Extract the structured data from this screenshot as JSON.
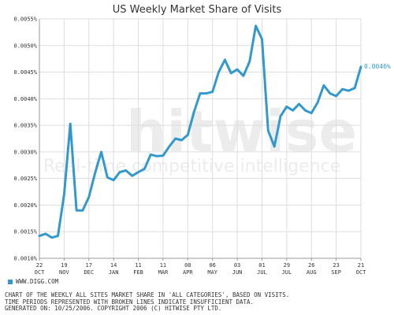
{
  "chart_data": {
    "type": "line",
    "title": "US Weekly Market Share of Visits",
    "ylim": [
      0.001,
      0.0055
    ],
    "yticks": [
      "0.0055%",
      "0.0050%",
      "0.0045%",
      "0.0040%",
      "0.0035%",
      "0.0030%",
      "0.0025%",
      "0.0020%",
      "0.0015%",
      "0.0010%"
    ],
    "yticks_values": [
      0.0055,
      0.005,
      0.0045,
      0.004,
      0.0035,
      0.003,
      0.0025,
      0.002,
      0.0015,
      0.001
    ],
    "xticks": [
      {
        "day": "22",
        "month": "OCT"
      },
      {
        "day": "19",
        "month": "NOV"
      },
      {
        "day": "17",
        "month": "DEC"
      },
      {
        "day": "14",
        "month": "JAN"
      },
      {
        "day": "11",
        "month": "FEB"
      },
      {
        "day": "11",
        "month": "MAR"
      },
      {
        "day": "08",
        "month": "APR"
      },
      {
        "day": "06",
        "month": "MAY"
      },
      {
        "day": "03",
        "month": "JUN"
      },
      {
        "day": "01",
        "month": "JUL"
      },
      {
        "day": "29",
        "month": "JUL"
      },
      {
        "day": "26",
        "month": "AUG"
      },
      {
        "day": "23",
        "month": "SEP"
      },
      {
        "day": "21",
        "month": "OCT"
      }
    ],
    "grid": true,
    "end_label": "0.0046%",
    "series": [
      {
        "name": "WWW.DIGG.COM",
        "color": "#3399cc",
        "values": [
          0.00142,
          0.00146,
          0.00139,
          0.00142,
          0.0022,
          0.00353,
          0.0019,
          0.0019,
          0.00215,
          0.0026,
          0.003,
          0.00252,
          0.00247,
          0.00262,
          0.00265,
          0.00255,
          0.00262,
          0.00268,
          0.00295,
          0.00292,
          0.00293,
          0.0031,
          0.00325,
          0.00322,
          0.00332,
          0.00375,
          0.0041,
          0.0041,
          0.00413,
          0.0045,
          0.00473,
          0.00448,
          0.00455,
          0.00443,
          0.0047,
          0.00537,
          0.00512,
          0.0034,
          0.0031,
          0.00367,
          0.00385,
          0.00378,
          0.0039,
          0.00378,
          0.00373,
          0.00393,
          0.00425,
          0.0041,
          0.00405,
          0.00418,
          0.00415,
          0.0042,
          0.0046
        ]
      }
    ]
  },
  "watermark": {
    "brand": "hitwise",
    "tagline": "Real-time competitive intelligence"
  },
  "legend": [
    {
      "label": "WWW.DIGG.COM",
      "color": "#3399cc"
    }
  ],
  "footer": {
    "line1": "CHART OF THE WEEKLY ALL SITES MARKET SHARE IN 'ALL CATEGORIES', BASED ON VISITS.",
    "line2": "TIME PERIODS REPRESENTED WITH BROKEN LINES INDICATE INSUFFICIENT DATA.",
    "line3": "GENERATED ON: 10/25/2006. COPYRIGHT 2006 (C) HITWISE PTY LTD."
  }
}
